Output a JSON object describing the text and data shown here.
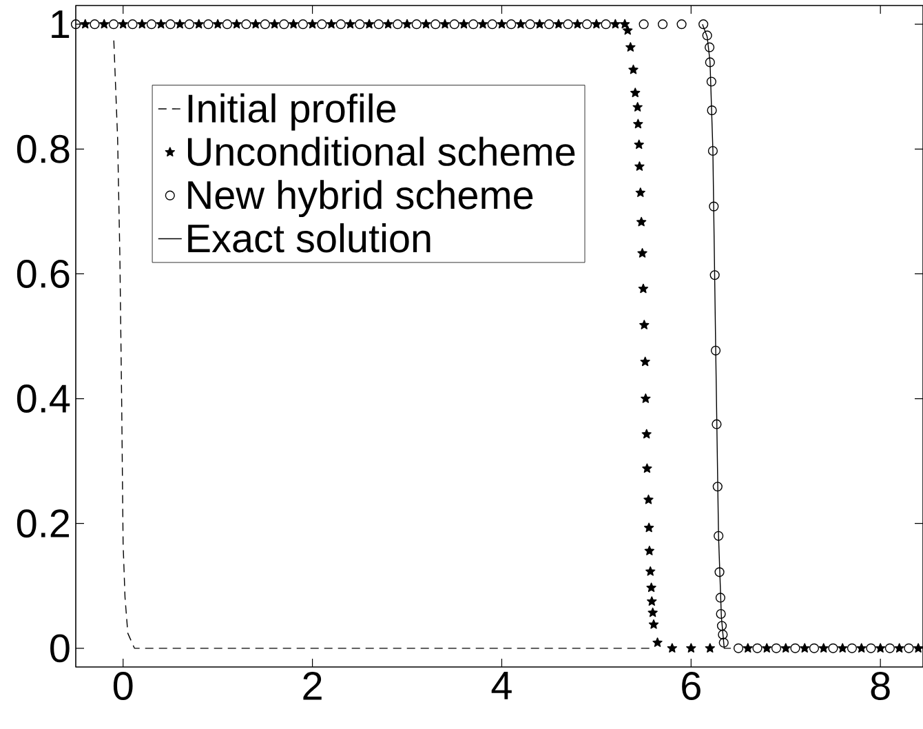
{
  "chart_data": {
    "type": "line",
    "xlim": [
      -0.5,
      8.45
    ],
    "ylim": [
      -0.03,
      1.03
    ],
    "xticks": [
      0,
      2,
      4,
      6,
      8
    ],
    "yticks": [
      0,
      0.2,
      0.4,
      0.6,
      0.8,
      1
    ],
    "legend": "top left",
    "grid": false,
    "series": [
      {
        "name": "Initial profile",
        "color": "#000000",
        "line_style": "dashed",
        "marker": "none",
        "x": [
          -0.098,
          -0.058,
          -0.034,
          -0.015,
          0,
          0.02,
          0.05,
          0.12,
          5.6
        ],
        "values": [
          0.974,
          0.817,
          0.627,
          0.393,
          0.168,
          0.082,
          0.024,
          0,
          0
        ]
      },
      {
        "name": "Unconditional scheme",
        "type": "scatter",
        "color": "#000000",
        "marker": "star",
        "x": [
          -0.4,
          -0.2,
          0,
          0.2,
          0.4,
          0.6,
          0.8,
          1,
          1.2,
          1.4,
          1.6,
          1.8,
          2,
          2.2,
          2.4,
          2.6,
          2.8,
          3,
          3.2,
          3.4,
          3.6,
          3.8,
          4,
          4.2,
          4.4,
          4.6,
          4.8,
          5,
          5.2,
          5.3,
          5.33,
          5.36,
          5.39,
          5.41,
          5.435,
          5.44,
          5.45,
          5.455,
          5.465,
          5.475,
          5.485,
          5.495,
          5.505,
          5.515,
          5.52,
          5.53,
          5.535,
          5.55,
          5.555,
          5.56,
          5.57,
          5.58,
          5.585,
          5.595,
          5.605,
          5.645,
          5.8,
          6,
          6.2,
          6.6,
          6.8,
          7,
          7.2,
          7.4,
          7.6,
          7.8,
          8,
          8.2,
          8.4
        ],
        "values": [
          1,
          1,
          1,
          1,
          1,
          1,
          1,
          1,
          1,
          1,
          1,
          1,
          1,
          1,
          1,
          1,
          1,
          1,
          1,
          1,
          1,
          1,
          1,
          1,
          1,
          1,
          1,
          1,
          1,
          1,
          0.99,
          0.963,
          0.927,
          0.89,
          0.867,
          0.84,
          0.807,
          0.772,
          0.73,
          0.683,
          0.633,
          0.576,
          0.518,
          0.459,
          0.4,
          0.343,
          0.288,
          0.238,
          0.193,
          0.156,
          0.123,
          0.097,
          0.075,
          0.057,
          0.038,
          0.009,
          0,
          0,
          0,
          0,
          0,
          0,
          0,
          0,
          0,
          0,
          0,
          0,
          0
        ]
      },
      {
        "name": "New hybrid scheme",
        "type": "scatter",
        "color": "#000000",
        "marker": "circle",
        "x": [
          -0.5,
          -0.3,
          -0.1,
          0.1,
          0.3,
          0.5,
          0.7,
          0.9,
          1.1,
          1.3,
          1.5,
          1.7,
          1.9,
          2.1,
          2.3,
          2.5,
          2.7,
          2.9,
          3.1,
          3.3,
          3.5,
          3.7,
          3.9,
          4.1,
          4.3,
          4.5,
          4.7,
          4.9,
          5.1,
          5.5,
          5.7,
          5.9,
          6.13,
          6.17,
          6.195,
          6.2,
          6.215,
          6.22,
          6.23,
          6.24,
          6.25,
          6.26,
          6.27,
          6.28,
          6.29,
          6.3,
          6.31,
          6.315,
          6.325,
          6.335,
          6.345,
          6.5,
          6.7,
          6.9,
          7.1,
          7.3,
          7.5,
          7.7,
          7.9,
          8.1,
          8.3
        ],
        "values": [
          1,
          1,
          1,
          1,
          1,
          1,
          1,
          1,
          1,
          1,
          1,
          1,
          1,
          1,
          1,
          1,
          1,
          1,
          1,
          1,
          1,
          1,
          1,
          1,
          1,
          1,
          1,
          1,
          1,
          1,
          1,
          1,
          1,
          0.982,
          0.963,
          0.939,
          0.908,
          0.862,
          0.797,
          0.708,
          0.598,
          0.477,
          0.359,
          0.259,
          0.18,
          0.122,
          0.081,
          0.055,
          0.036,
          0.022,
          0.009,
          0,
          0,
          0,
          0,
          0,
          0,
          0,
          0,
          0,
          0
        ]
      },
      {
        "name": "Exact solution",
        "color": "#000000",
        "line_style": "solid",
        "marker": "none",
        "x": [
          6.12,
          6.17,
          6.2,
          6.23,
          6.26,
          6.29,
          6.32,
          6.35,
          6.42
        ],
        "values": [
          1,
          0.98,
          0.94,
          0.8,
          0.48,
          0.18,
          0.05,
          0,
          0
        ]
      }
    ]
  }
}
